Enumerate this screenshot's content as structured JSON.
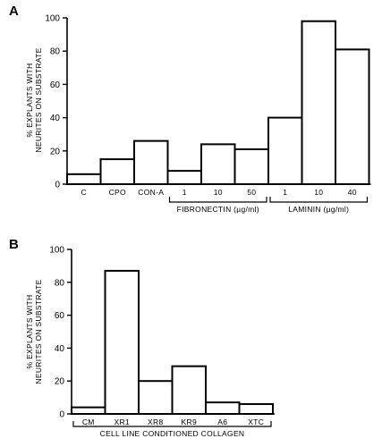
{
  "chart_data": [
    {
      "type": "bar",
      "panel": "A",
      "ylabel": [
        "% EXPLANTS WITH",
        "NEURITES ON SUBSTRATE"
      ],
      "ylim": [
        0,
        100
      ],
      "yticks": [
        "0",
        "20",
        "40",
        "60",
        "80",
        "100"
      ],
      "categories": [
        "C",
        "CPO",
        "CON-A",
        "1",
        "10",
        "50",
        "1",
        "10",
        "40"
      ],
      "values": [
        6,
        15,
        26,
        8,
        24,
        21,
        40,
        98,
        81
      ],
      "groups": [
        {
          "label": "FIBRONECTIN (µg/ml)",
          "categories": [
            "1",
            "10",
            "50"
          ]
        },
        {
          "label": "LAMININ (µg/ml)",
          "categories": [
            "1",
            "10",
            "40"
          ]
        }
      ]
    },
    {
      "type": "bar",
      "panel": "B",
      "ylabel": [
        "% EXPLANTS WITH",
        "NEURITES ON SUBSTRATE"
      ],
      "ylim": [
        0,
        100
      ],
      "yticks": [
        "0",
        "20",
        "40",
        "60",
        "80",
        "100"
      ],
      "categories": [
        "CM",
        "XR1",
        "XR8",
        "KR9",
        "A6",
        "XTC"
      ],
      "values": [
        4,
        87,
        20,
        29,
        7,
        6
      ],
      "groups": [
        {
          "label": "CELL LINE CONDITIONED COLLAGEN",
          "categories": [
            "CM",
            "XR1",
            "XR8",
            "KR9",
            "A6",
            "XTC"
          ]
        }
      ]
    }
  ]
}
